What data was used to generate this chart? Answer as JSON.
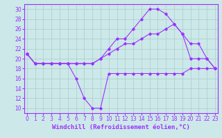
{
  "xlabel": "Windchill (Refroidissement éolien,°C)",
  "x": [
    0,
    1,
    2,
    3,
    4,
    5,
    6,
    7,
    8,
    9,
    10,
    11,
    12,
    13,
    14,
    15,
    16,
    17,
    18,
    19,
    20,
    21,
    22,
    23
  ],
  "s1": [
    21,
    19,
    19,
    19,
    19,
    19,
    16,
    12,
    10,
    10,
    17,
    17,
    17,
    17,
    17,
    17,
    17,
    17,
    17,
    17,
    18,
    18,
    18,
    18
  ],
  "s2": [
    21,
    19,
    19,
    19,
    19,
    19,
    19,
    19,
    19,
    20,
    21,
    22,
    23,
    23,
    24,
    25,
    25,
    26,
    27,
    25,
    20,
    20,
    20,
    18
  ],
  "s3": [
    21,
    19,
    19,
    19,
    19,
    19,
    19,
    19,
    19,
    20,
    22,
    24,
    24,
    26,
    28,
    30,
    30,
    29,
    27,
    25,
    23,
    23,
    20,
    18
  ],
  "line_color": "#9b30ff",
  "bg_color": "#cce8e8",
  "grid_color": "#aacccc",
  "ylim": [
    9,
    31
  ],
  "yticks": [
    10,
    12,
    14,
    16,
    18,
    20,
    22,
    24,
    26,
    28,
    30
  ],
  "xticks": [
    0,
    1,
    2,
    3,
    4,
    5,
    6,
    7,
    8,
    9,
    10,
    11,
    12,
    13,
    14,
    15,
    16,
    17,
    18,
    19,
    20,
    21,
    22,
    23
  ],
  "tick_fontsize": 5.5,
  "xlabel_fontsize": 6.5
}
